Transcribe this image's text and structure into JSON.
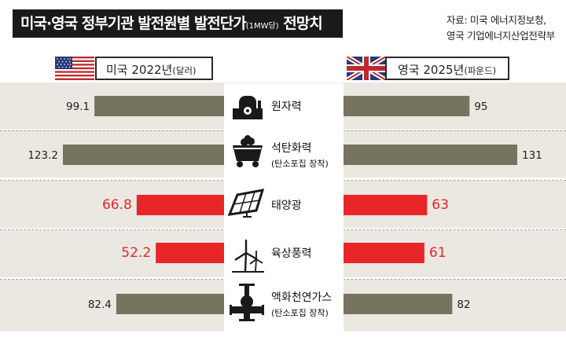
{
  "title": {
    "main": "미국·영국 정부기관 발전원별 발전단가",
    "unit": "(1MW당)",
    "tail": " 전망치"
  },
  "source": {
    "line1": "자료: 미국 에너지정보청,",
    "line2": "영국 기업에너지산업전략부"
  },
  "legend": {
    "left": {
      "label": "미국 2022년",
      "unit": "(달러)"
    },
    "right": {
      "label": "영국 2025년",
      "unit": "(파운드)"
    }
  },
  "colors": {
    "gray_bar": "#76735f",
    "red_bar": "#e8262a",
    "band": "#ebe8e2",
    "red_text": "#e8262a"
  },
  "chart_data": {
    "type": "bar",
    "orientation": "horizontal-butterfly",
    "categories": [
      "원자력",
      "석탄화력",
      "태양광",
      "육상풍력",
      "액화천연가스"
    ],
    "category_notes": [
      "",
      "(탄소포집 장착)",
      "",
      "",
      "(탄소포집 장착)"
    ],
    "icons": [
      "nuclear-plant-icon",
      "coal-cart-icon",
      "solar-panel-icon",
      "wind-turbine-icon",
      "gas-pipe-icon"
    ],
    "highlight": [
      false,
      false,
      true,
      true,
      false
    ],
    "series": [
      {
        "name": "미국 2022년(달러)",
        "side": "left",
        "values": [
          99.1,
          123.2,
          66.8,
          52.2,
          82.4
        ],
        "labels": [
          "99.1",
          "123.2",
          "66.8",
          "52.2",
          "82.4"
        ]
      },
      {
        "name": "영국 2025년(파운드)",
        "side": "right",
        "values": [
          95,
          131,
          63,
          61,
          82
        ],
        "labels": [
          "95",
          "131",
          "63",
          "61",
          "82"
        ]
      }
    ]
  }
}
